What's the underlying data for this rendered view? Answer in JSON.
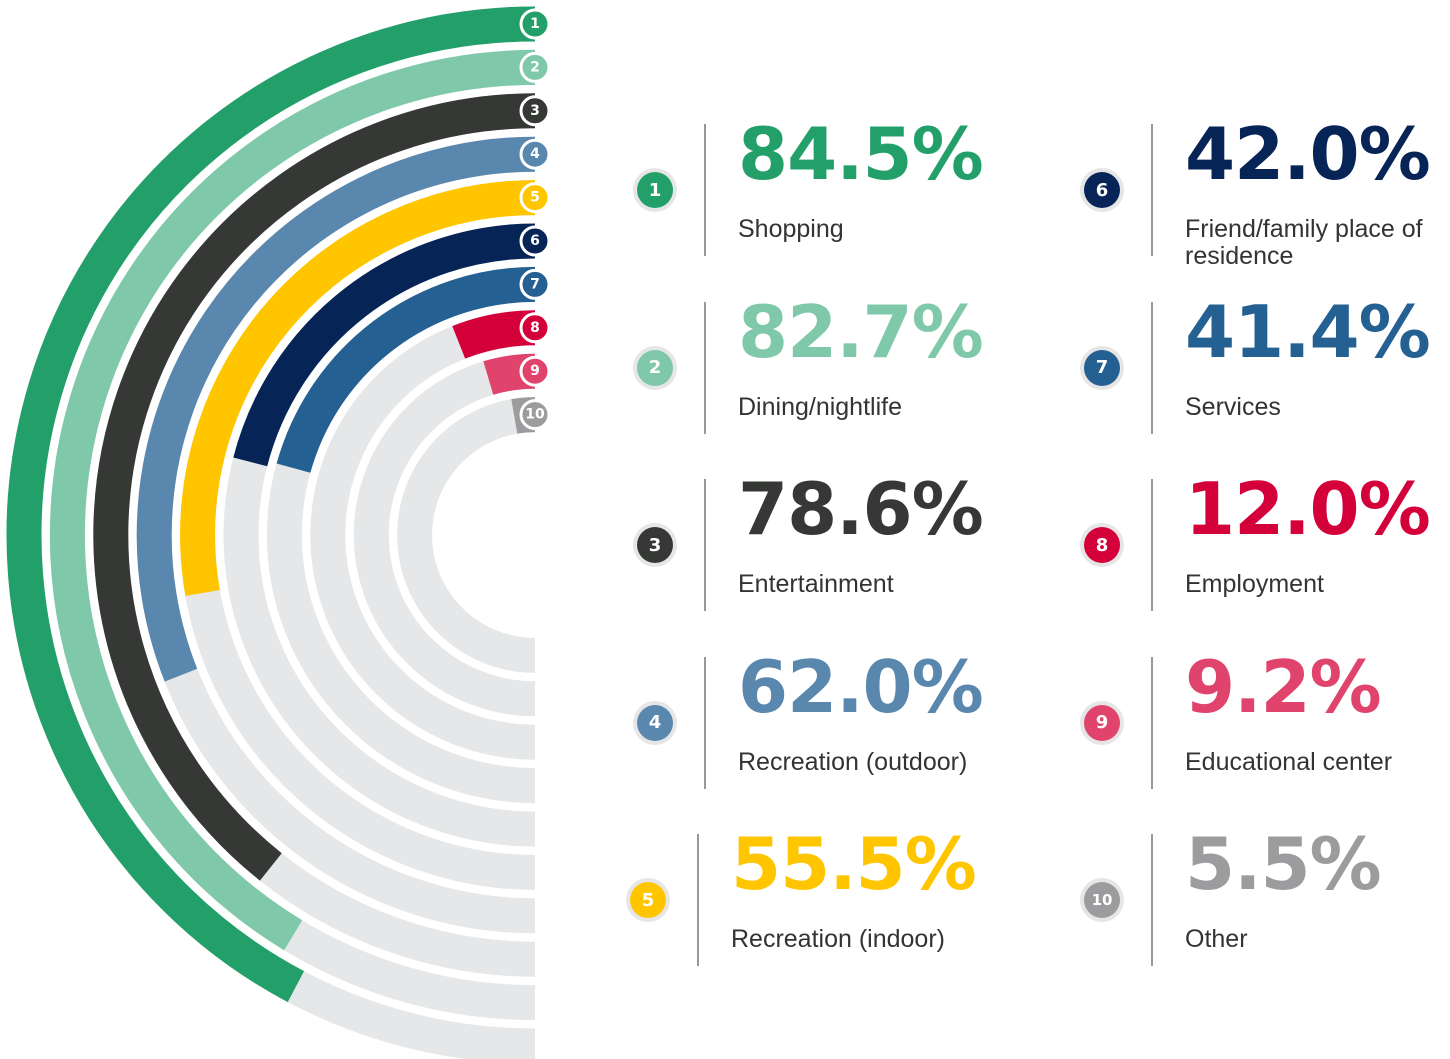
{
  "chart_data": {
    "type": "radial_bar",
    "ranks": [
      1,
      2,
      3,
      4,
      5,
      6,
      7,
      8,
      9,
      10
    ],
    "categories": [
      "Shopping",
      "Dining/nightlife",
      "Entertainment",
      "Recreation (outdoor)",
      "Recreation (indoor)",
      "Friend/family place of residence",
      "Services",
      "Employment",
      "Educational center",
      "Other"
    ],
    "values": [
      84.5,
      82.7,
      78.6,
      62.0,
      55.5,
      42.0,
      41.4,
      12.0,
      9.2,
      5.5
    ],
    "value_labels": [
      "84.5%",
      "82.7%",
      "78.6%",
      "62.0%",
      "55.5%",
      "42.0%",
      "41.4%",
      "12.0%",
      "9.2%",
      "5.5%"
    ],
    "colors": [
      "#23a06a",
      "#7fc8a9",
      "#363836",
      "#5a87ae",
      "#ffc600",
      "#062456",
      "#256092",
      "#d4003a",
      "#e0446c",
      "#9c9c9e"
    ],
    "xlim": [
      0,
      100
    ]
  }
}
